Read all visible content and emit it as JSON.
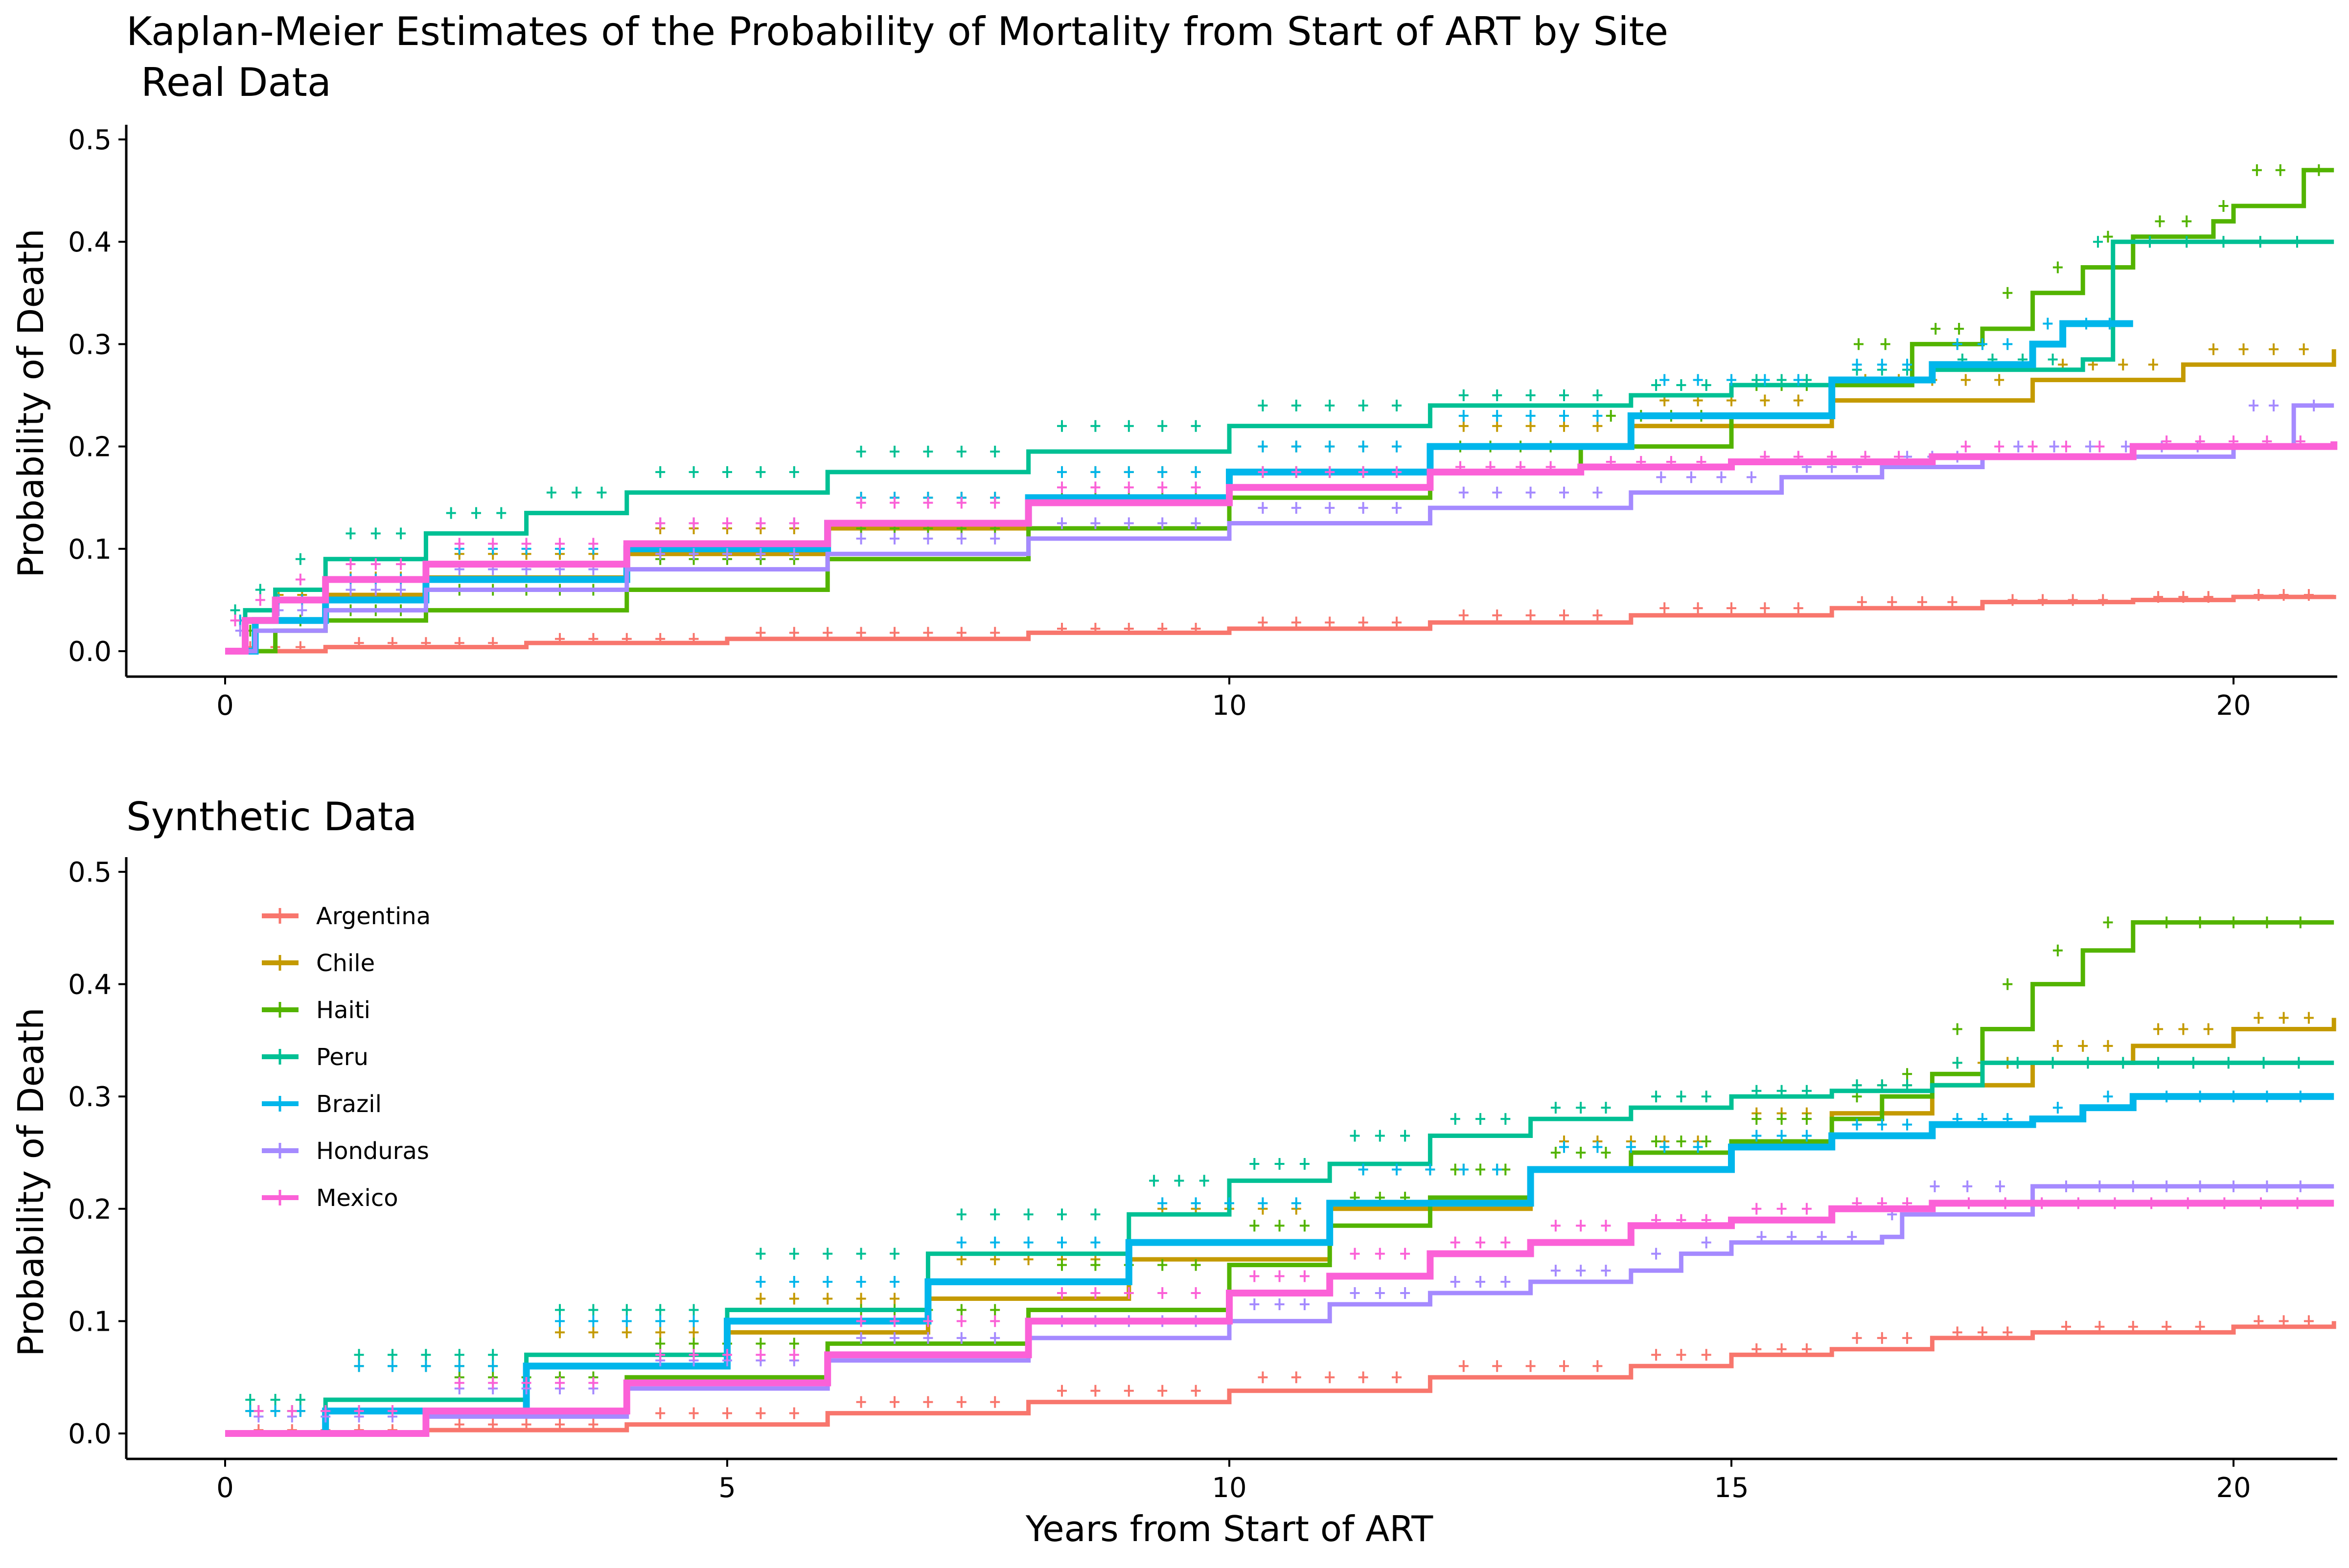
{
  "title_line1": "Kaplan-Meier Estimates of the Probability of Mortality from Start of ART by Site",
  "xlabel": "Years from Start of ART",
  "legend_entries": [
    "Argentina",
    "Chile",
    "Haiti",
    "Peru",
    "Brazil",
    "Honduras",
    "Mexico"
  ],
  "colors": {
    "Argentina": "#F8766D",
    "Chile": "#C49A00",
    "Haiti": "#53B400",
    "Peru": "#00C094",
    "Brazil": "#00B6EB",
    "Honduras": "#A58AFF",
    "Mexico": "#FB61D7"
  },
  "chart_data": [
    {
      "type": "line",
      "step": true,
      "title": "Real Data",
      "ylabel": "Probability of Death",
      "xlim": [
        0,
        21
      ],
      "ylim": [
        0,
        0.5
      ],
      "xticks": [
        0,
        10,
        20
      ],
      "yticks": [
        0.0,
        0.1,
        0.2,
        0.3,
        0.4,
        0.5
      ],
      "ytick_labels": [
        "0.0",
        "0.1",
        "0.2",
        "0.3",
        "0.4",
        "0.5"
      ],
      "grid": false,
      "legend": "none",
      "series": [
        {
          "name": "Argentina",
          "points": [
            [
              0,
              0
            ],
            [
              1,
              0.004
            ],
            [
              3,
              0.008
            ],
            [
              5,
              0.012
            ],
            [
              8,
              0.018
            ],
            [
              10,
              0.022
            ],
            [
              12,
              0.028
            ],
            [
              14,
              0.035
            ],
            [
              16,
              0.042
            ],
            [
              17.5,
              0.048
            ],
            [
              19,
              0.05
            ],
            [
              20,
              0.053
            ],
            [
              21,
              0.055
            ]
          ]
        },
        {
          "name": "Chile",
          "points": [
            [
              0,
              0
            ],
            [
              0.3,
              0.03
            ],
            [
              1,
              0.055
            ],
            [
              2,
              0.072
            ],
            [
              4,
              0.095
            ],
            [
              6,
              0.12
            ],
            [
              8,
              0.15
            ],
            [
              10,
              0.175
            ],
            [
              12,
              0.2
            ],
            [
              14,
              0.22
            ],
            [
              16,
              0.245
            ],
            [
              18,
              0.265
            ],
            [
              19.5,
              0.28
            ],
            [
              21,
              0.295
            ]
          ]
        },
        {
          "name": "Haiti",
          "points": [
            [
              0,
              0
            ],
            [
              0.5,
              0.02
            ],
            [
              1,
              0.03
            ],
            [
              2,
              0.04
            ],
            [
              4,
              0.06
            ],
            [
              6,
              0.09
            ],
            [
              8,
              0.12
            ],
            [
              10,
              0.15
            ],
            [
              12,
              0.175
            ],
            [
              13.5,
              0.2
            ],
            [
              15,
              0.23
            ],
            [
              16,
              0.26
            ],
            [
              16.8,
              0.3
            ],
            [
              17.5,
              0.315
            ],
            [
              18,
              0.35
            ],
            [
              18.5,
              0.375
            ],
            [
              19,
              0.405
            ],
            [
              19.8,
              0.42
            ],
            [
              20,
              0.435
            ],
            [
              20.7,
              0.47
            ],
            [
              21,
              0.47
            ]
          ]
        },
        {
          "name": "Peru",
          "points": [
            [
              0,
              0
            ],
            [
              0.2,
              0.04
            ],
            [
              0.5,
              0.06
            ],
            [
              1,
              0.09
            ],
            [
              2,
              0.115
            ],
            [
              3,
              0.135
            ],
            [
              4,
              0.155
            ],
            [
              6,
              0.175
            ],
            [
              8,
              0.195
            ],
            [
              10,
              0.22
            ],
            [
              12,
              0.24
            ],
            [
              14,
              0.25
            ],
            [
              15,
              0.26
            ],
            [
              16,
              0.265
            ],
            [
              17,
              0.275
            ],
            [
              18.5,
              0.285
            ],
            [
              18.8,
              0.4
            ],
            [
              21,
              0.4
            ]
          ]
        },
        {
          "name": "Brazil",
          "points": [
            [
              0,
              0
            ],
            [
              0.3,
              0.03
            ],
            [
              1,
              0.05
            ],
            [
              2,
              0.07
            ],
            [
              4,
              0.1
            ],
            [
              6,
              0.125
            ],
            [
              8,
              0.15
            ],
            [
              10,
              0.175
            ],
            [
              12,
              0.2
            ],
            [
              14,
              0.23
            ],
            [
              16,
              0.265
            ],
            [
              17,
              0.28
            ],
            [
              18,
              0.3
            ],
            [
              18.3,
              0.32
            ],
            [
              19,
              0.32
            ]
          ]
        },
        {
          "name": "Honduras",
          "points": [
            [
              0,
              0
            ],
            [
              0.3,
              0.02
            ],
            [
              1,
              0.04
            ],
            [
              2,
              0.06
            ],
            [
              4,
              0.08
            ],
            [
              6,
              0.095
            ],
            [
              8,
              0.11
            ],
            [
              10,
              0.125
            ],
            [
              12,
              0.14
            ],
            [
              14,
              0.155
            ],
            [
              15.5,
              0.17
            ],
            [
              16.5,
              0.18
            ],
            [
              17.5,
              0.19
            ],
            [
              20,
              0.2
            ],
            [
              20.6,
              0.24
            ],
            [
              21,
              0.24
            ]
          ]
        },
        {
          "name": "Mexico",
          "points": [
            [
              0,
              0
            ],
            [
              0.2,
              0.03
            ],
            [
              0.5,
              0.05
            ],
            [
              1,
              0.07
            ],
            [
              2,
              0.085
            ],
            [
              4,
              0.105
            ],
            [
              6,
              0.125
            ],
            [
              8,
              0.145
            ],
            [
              10,
              0.16
            ],
            [
              12,
              0.175
            ],
            [
              13.5,
              0.18
            ],
            [
              15,
              0.185
            ],
            [
              17,
              0.19
            ],
            [
              19,
              0.2
            ],
            [
              21,
              0.205
            ]
          ]
        }
      ]
    },
    {
      "type": "line",
      "step": true,
      "title": "Synthetic Data",
      "ylabel": "Probability of Death",
      "xlim": [
        0,
        21
      ],
      "ylim": [
        0,
        0.5
      ],
      "xticks": [
        0,
        5,
        10,
        15,
        20
      ],
      "yticks": [
        0.0,
        0.1,
        0.2,
        0.3,
        0.4,
        0.5
      ],
      "ytick_labels": [
        "0.0",
        "0.1",
        "0.2",
        "0.3",
        "0.4",
        "0.5"
      ],
      "grid": false,
      "legend": "top-left",
      "series": [
        {
          "name": "Argentina",
          "points": [
            [
              0,
              0
            ],
            [
              2,
              0.003
            ],
            [
              4,
              0.008
            ],
            [
              6,
              0.018
            ],
            [
              8,
              0.028
            ],
            [
              10,
              0.038
            ],
            [
              12,
              0.05
            ],
            [
              14,
              0.06
            ],
            [
              15,
              0.07
            ],
            [
              16,
              0.075
            ],
            [
              17,
              0.085
            ],
            [
              18,
              0.09
            ],
            [
              20,
              0.095
            ],
            [
              21,
              0.1
            ]
          ]
        },
        {
          "name": "Chile",
          "points": [
            [
              0,
              0
            ],
            [
              1,
              0.02
            ],
            [
              3,
              0.06
            ],
            [
              5,
              0.09
            ],
            [
              7,
              0.12
            ],
            [
              9,
              0.155
            ],
            [
              11,
              0.2
            ],
            [
              13,
              0.235
            ],
            [
              15,
              0.26
            ],
            [
              16,
              0.285
            ],
            [
              17,
              0.31
            ],
            [
              18,
              0.33
            ],
            [
              19,
              0.345
            ],
            [
              20,
              0.36
            ],
            [
              21,
              0.37
            ]
          ]
        },
        {
          "name": "Haiti",
          "points": [
            [
              0,
              0
            ],
            [
              2,
              0.02
            ],
            [
              4,
              0.05
            ],
            [
              6,
              0.08
            ],
            [
              8,
              0.11
            ],
            [
              10,
              0.15
            ],
            [
              11,
              0.185
            ],
            [
              12,
              0.21
            ],
            [
              13,
              0.235
            ],
            [
              14,
              0.25
            ],
            [
              15,
              0.26
            ],
            [
              16,
              0.28
            ],
            [
              16.5,
              0.3
            ],
            [
              17,
              0.32
            ],
            [
              17.5,
              0.36
            ],
            [
              18,
              0.4
            ],
            [
              18.5,
              0.43
            ],
            [
              19,
              0.455
            ],
            [
              21,
              0.455
            ]
          ]
        },
        {
          "name": "Peru",
          "points": [
            [
              0,
              0
            ],
            [
              1,
              0.03
            ],
            [
              3,
              0.07
            ],
            [
              5,
              0.11
            ],
            [
              7,
              0.16
            ],
            [
              9,
              0.195
            ],
            [
              10,
              0.225
            ],
            [
              11,
              0.24
            ],
            [
              12,
              0.265
            ],
            [
              13,
              0.28
            ],
            [
              14,
              0.29
            ],
            [
              15,
              0.3
            ],
            [
              16,
              0.305
            ],
            [
              17,
              0.31
            ],
            [
              17.5,
              0.33
            ],
            [
              21,
              0.33
            ]
          ]
        },
        {
          "name": "Brazil",
          "points": [
            [
              0,
              0
            ],
            [
              1,
              0.02
            ],
            [
              3,
              0.06
            ],
            [
              5,
              0.1
            ],
            [
              7,
              0.135
            ],
            [
              9,
              0.17
            ],
            [
              11,
              0.205
            ],
            [
              13,
              0.235
            ],
            [
              15,
              0.255
            ],
            [
              16,
              0.265
            ],
            [
              17,
              0.275
            ],
            [
              18,
              0.28
            ],
            [
              18.5,
              0.29
            ],
            [
              19,
              0.3
            ],
            [
              21,
              0.3
            ]
          ]
        },
        {
          "name": "Honduras",
          "points": [
            [
              0,
              0
            ],
            [
              2,
              0.015
            ],
            [
              4,
              0.04
            ],
            [
              6,
              0.065
            ],
            [
              8,
              0.085
            ],
            [
              10,
              0.1
            ],
            [
              11,
              0.115
            ],
            [
              12,
              0.125
            ],
            [
              13,
              0.135
            ],
            [
              14,
              0.145
            ],
            [
              14.5,
              0.16
            ],
            [
              15,
              0.17
            ],
            [
              16.5,
              0.175
            ],
            [
              16.7,
              0.195
            ],
            [
              18,
              0.22
            ],
            [
              21,
              0.22
            ]
          ]
        },
        {
          "name": "Mexico",
          "points": [
            [
              0,
              0
            ],
            [
              2,
              0.02
            ],
            [
              4,
              0.045
            ],
            [
              6,
              0.07
            ],
            [
              8,
              0.1
            ],
            [
              10,
              0.125
            ],
            [
              11,
              0.14
            ],
            [
              12,
              0.16
            ],
            [
              13,
              0.17
            ],
            [
              14,
              0.185
            ],
            [
              15,
              0.19
            ],
            [
              16,
              0.2
            ],
            [
              17,
              0.205
            ],
            [
              21,
              0.205
            ]
          ]
        }
      ]
    }
  ]
}
